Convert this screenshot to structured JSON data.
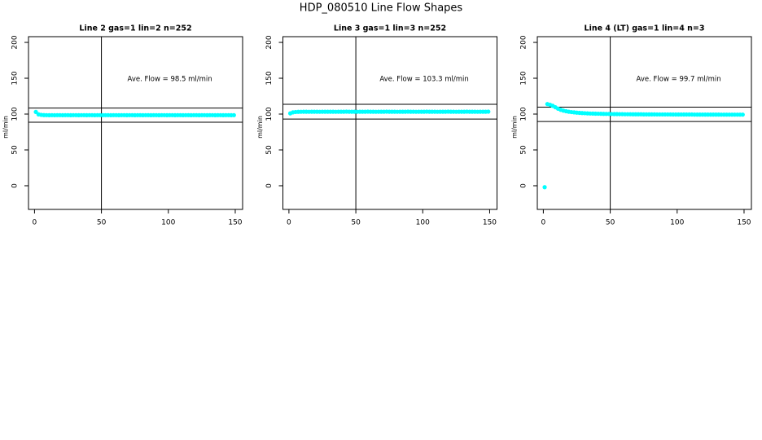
{
  "title": "HDP_080510  Line Flow Shapes",
  "chart_data": [
    {
      "type": "scatter",
      "title": "Line 2 gas=1 lin=2 n=252",
      "ylabel": "ml/min",
      "annotation": "Ave. Flow =  98.5  ml/min",
      "color": "#00ffff",
      "x": [
        1,
        3,
        5,
        7,
        9,
        11,
        13,
        15,
        17,
        19,
        21,
        23,
        25,
        27,
        29,
        31,
        33,
        35,
        37,
        39,
        41,
        43,
        45,
        47,
        49,
        51,
        53,
        55,
        57,
        59,
        61,
        63,
        65,
        67,
        69,
        71,
        73,
        75,
        77,
        79,
        81,
        83,
        85,
        87,
        89,
        91,
        93,
        95,
        97,
        99,
        101,
        103,
        105,
        107,
        109,
        111,
        113,
        115,
        117,
        119,
        121,
        123,
        125,
        127,
        129,
        131,
        133,
        135,
        137,
        139,
        141,
        143,
        145,
        147,
        149
      ],
      "values": [
        103,
        99.6,
        98.9,
        98.6,
        98.5,
        98.4,
        98.5,
        98.4,
        98.5,
        98.5,
        98.4,
        98.5,
        98.5,
        98.4,
        98.5,
        98.5,
        98.4,
        98.5,
        98.5,
        98.4,
        98.5,
        98.5,
        98.4,
        98.5,
        98.5,
        98.4,
        98.5,
        98.5,
        98.4,
        98.5,
        98.5,
        98.4,
        98.5,
        98.5,
        98.4,
        98.5,
        98.5,
        98.4,
        98.5,
        98.5,
        98.4,
        98.5,
        98.5,
        98.4,
        98.5,
        98.5,
        98.4,
        98.5,
        98.5,
        98.4,
        98.5,
        98.5,
        98.4,
        98.5,
        98.5,
        98.4,
        98.5,
        98.5,
        98.4,
        98.5,
        98.5,
        98.4,
        98.5,
        98.5,
        98.4,
        98.5,
        98.5,
        98.4,
        98.5,
        98.5,
        98.4,
        98.5,
        98.5,
        98.4,
        98.5
      ],
      "hlines": [
        108.4,
        88.7
      ],
      "vline": 50,
      "xlim": [
        -4.5,
        155.5
      ],
      "ylim": [
        -33,
        208
      ],
      "xticks": [
        0,
        50,
        100,
        150
      ],
      "yticks": [
        0,
        50,
        100,
        150,
        200
      ]
    },
    {
      "type": "scatter",
      "title": "Line 3 gas=1 lin=3 n=252",
      "ylabel": "ml/min",
      "annotation": "Ave. Flow =  103.3  ml/min",
      "color": "#00ffff",
      "x": [
        1,
        3,
        5,
        7,
        9,
        11,
        13,
        15,
        17,
        19,
        21,
        23,
        25,
        27,
        29,
        31,
        33,
        35,
        37,
        39,
        41,
        43,
        45,
        47,
        49,
        51,
        53,
        55,
        57,
        59,
        61,
        63,
        65,
        67,
        69,
        71,
        73,
        75,
        77,
        79,
        81,
        83,
        85,
        87,
        89,
        91,
        93,
        95,
        97,
        99,
        101,
        103,
        105,
        107,
        109,
        111,
        113,
        115,
        117,
        119,
        121,
        123,
        125,
        127,
        129,
        131,
        133,
        135,
        137,
        139,
        141,
        143,
        145,
        147,
        149
      ],
      "values": [
        101,
        102.4,
        102.9,
        103.1,
        103.2,
        103.3,
        103.3,
        103.2,
        103.3,
        103.3,
        103.3,
        103.2,
        103.3,
        103.3,
        103.3,
        103.3,
        103.3,
        103.2,
        103.3,
        103.3,
        103.3,
        103.4,
        103.3,
        103.3,
        103.3,
        103.2,
        103.3,
        103.3,
        103.3,
        103.4,
        103.3,
        103.3,
        103.2,
        103.3,
        103.3,
        103.3,
        103.4,
        103.3,
        103.3,
        103.3,
        103.2,
        103.3,
        103.3,
        103.3,
        103.4,
        103.3,
        103.3,
        103.2,
        103.3,
        103.3,
        103.3,
        103.4,
        103.3,
        103.3,
        103.3,
        103.2,
        103.3,
        103.3,
        103.3,
        103.4,
        103.3,
        103.3,
        103.2,
        103.3,
        103.3,
        103.3,
        103.4,
        103.3,
        103.3,
        103.3,
        103.2,
        103.3,
        103.3,
        103.3,
        103.4
      ],
      "hlines": [
        113.6,
        93.0
      ],
      "vline": 50,
      "xlim": [
        -4.5,
        155.5
      ],
      "ylim": [
        -33,
        208
      ],
      "xticks": [
        0,
        50,
        100,
        150
      ],
      "yticks": [
        0,
        50,
        100,
        150,
        200
      ]
    },
    {
      "type": "scatter",
      "title": "Line 4 (LT) gas=1 lin=4 n=3",
      "ylabel": "ml/min",
      "annotation": "Ave. Flow =  99.7  ml/min",
      "color": "#00ffff",
      "x": [
        1,
        3,
        5,
        7,
        9,
        11,
        13,
        15,
        17,
        19,
        21,
        23,
        25,
        27,
        29,
        31,
        33,
        35,
        37,
        39,
        41,
        43,
        45,
        47,
        49,
        51,
        53,
        55,
        57,
        59,
        61,
        63,
        65,
        67,
        69,
        71,
        73,
        75,
        77,
        79,
        81,
        83,
        85,
        87,
        89,
        91,
        93,
        95,
        97,
        99,
        101,
        103,
        105,
        107,
        109,
        111,
        113,
        115,
        117,
        119,
        121,
        123,
        125,
        127,
        129,
        131,
        133,
        135,
        137,
        139,
        141,
        143,
        145,
        147,
        149
      ],
      "values": [
        -2,
        114,
        113,
        111.5,
        109.5,
        107.5,
        106,
        104.8,
        104,
        103.3,
        102.8,
        102.4,
        102,
        101.7,
        101.4,
        101.2,
        101,
        100.8,
        100.7,
        100.6,
        100.5,
        100.4,
        100.3,
        100.2,
        100.2,
        100.1,
        100,
        100,
        99.9,
        99.9,
        99.8,
        99.8,
        99.8,
        99.7,
        99.7,
        99.7,
        99.7,
        99.6,
        99.6,
        99.6,
        99.6,
        99.6,
        99.5,
        99.5,
        99.5,
        99.5,
        99.5,
        99.5,
        99.4,
        99.4,
        99.4,
        99.4,
        99.4,
        99.4,
        99.4,
        99.4,
        99.3,
        99.3,
        99.3,
        99.3,
        99.3,
        99.3,
        99.3,
        99.3,
        99.3,
        99.3,
        99.2,
        99.2,
        99.2,
        99.2,
        99.2,
        99.2,
        99.2,
        99.2,
        99.2
      ],
      "hlines": [
        109.7,
        89.7
      ],
      "vline": 50,
      "xlim": [
        -4.5,
        155.5
      ],
      "ylim": [
        -33,
        208
      ],
      "xticks": [
        0,
        50,
        100,
        150
      ],
      "yticks": [
        0,
        50,
        100,
        150,
        200
      ]
    }
  ]
}
